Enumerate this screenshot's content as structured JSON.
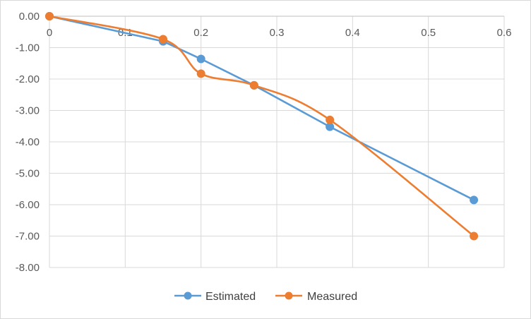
{
  "chart_data": {
    "type": "line",
    "title": "",
    "xlabel": "",
    "ylabel": "",
    "xlim": [
      0,
      0.6
    ],
    "ylim": [
      -8,
      0
    ],
    "x_ticks": [
      "0",
      "0.1",
      "0.2",
      "0.3",
      "0.4",
      "0.5",
      "0.6"
    ],
    "y_ticks": [
      "0.00",
      "-1.00",
      "-2.00",
      "-3.00",
      "-4.00",
      "-5.00",
      "-6.00",
      "-7.00",
      "-8.00"
    ],
    "grid": true,
    "legend_position": "bottom",
    "series": [
      {
        "name": "Estimated",
        "color": "#5B9BD5",
        "smooth": false,
        "x": [
          0,
          0.15,
          0.2,
          0.27,
          0.37,
          0.56
        ],
        "y": [
          0,
          -0.8,
          -1.36,
          -2.2,
          -3.52,
          -5.85
        ]
      },
      {
        "name": "Measured",
        "color": "#ED7D31",
        "smooth": true,
        "x": [
          0,
          0.15,
          0.2,
          0.27,
          0.37,
          0.56
        ],
        "y": [
          0,
          -0.73,
          -1.83,
          -2.2,
          -3.3,
          -7.0
        ]
      }
    ]
  }
}
